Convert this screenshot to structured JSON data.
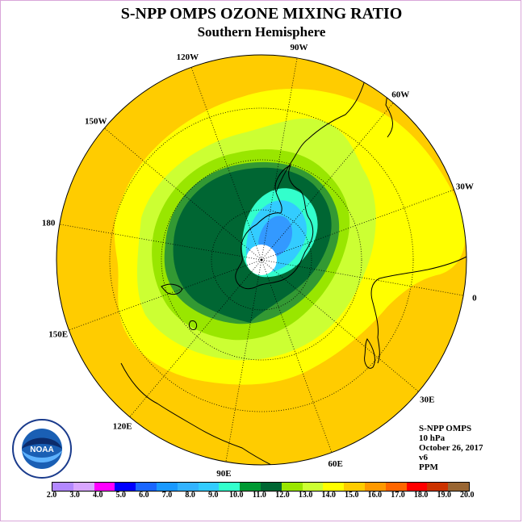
{
  "header": {
    "title": "S-NPP OMPS OZONE MIXING RATIO",
    "subtitle": "Southern Hemisphere"
  },
  "map": {
    "projection": "south-polar-stereographic",
    "longitude_labels": [
      "90W",
      "60W",
      "30W",
      "0",
      "30E",
      "60E",
      "90E",
      "120E",
      "150E",
      "180",
      "150W",
      "120W"
    ],
    "fill_colors": {
      "c14_15": "#ffff00",
      "c15_16": "#ffcc00",
      "c13_14": "#ccff33",
      "c12_13": "#99e600",
      "c11_12": "#339933",
      "c10_11": "#006633",
      "c9_10": "#33ffcc",
      "c8_9": "#33ccff",
      "c7_8": "#3399ff",
      "missing": "#ffffff"
    }
  },
  "info": {
    "instrument": "S-NPP OMPS",
    "level": "10 hPa",
    "date": "October 26, 2017",
    "version": "v6",
    "units": "PPM"
  },
  "logo": {
    "text": "NOAA",
    "ring_text": "NATIONAL OCEANIC AND ATMOSPHERIC ADMINISTRATION U.S. DEPARTMENT OF COMMERCE"
  },
  "colorbar": {
    "ticks": [
      "2.0",
      "3.0",
      "4.0",
      "5.0",
      "6.0",
      "7.0",
      "8.0",
      "9.0",
      "10.0",
      "11.0",
      "12.0",
      "13.0",
      "14.0",
      "15.0",
      "16.0",
      "17.0",
      "18.0",
      "19.0",
      "20.0"
    ],
    "colors": [
      "#b388ff",
      "#d9a6ff",
      "#ff00ff",
      "#0000ff",
      "#1a66ff",
      "#1a99ff",
      "#33b3ff",
      "#33ccff",
      "#33ffcc",
      "#009933",
      "#006633",
      "#99e600",
      "#ccff33",
      "#ffff00",
      "#ffcc00",
      "#ff9900",
      "#ff6600",
      "#ff0000",
      "#cc3300",
      "#996633"
    ]
  }
}
